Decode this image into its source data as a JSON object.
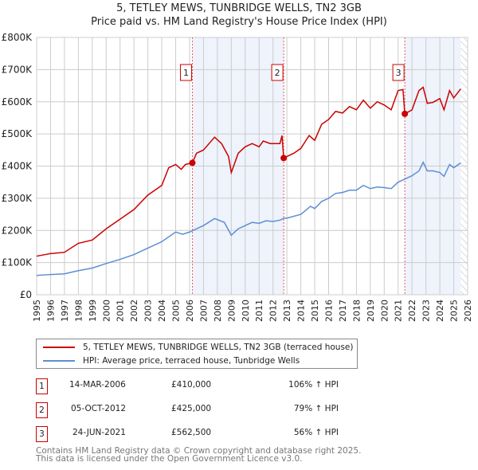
{
  "chart_data": {
    "type": "line",
    "title": "5, TETLEY MEWS, TUNBRIDGE WELLS, TN2 3GB",
    "subtitle": "Price paid vs. HM Land Registry's House Price Index (HPI)",
    "xlim": [
      1995,
      2026
    ],
    "ylim": [
      0,
      800000
    ],
    "x_ticks": [
      "1995",
      "1996",
      "1997",
      "1998",
      "1999",
      "2000",
      "2001",
      "2002",
      "2003",
      "2004",
      "2005",
      "2006",
      "2007",
      "2008",
      "2009",
      "2010",
      "2011",
      "2012",
      "2013",
      "2014",
      "2015",
      "2016",
      "2017",
      "2018",
      "2019",
      "2020",
      "2021",
      "2022",
      "2023",
      "2024",
      "2025",
      "2026"
    ],
    "y_ticks": [
      {
        "v": 0,
        "label": "£0"
      },
      {
        "v": 100000,
        "label": "£100K"
      },
      {
        "v": 200000,
        "label": "£200K"
      },
      {
        "v": 300000,
        "label": "£300K"
      },
      {
        "v": 400000,
        "label": "£400K"
      },
      {
        "v": 500000,
        "label": "£500K"
      },
      {
        "v": 600000,
        "label": "£600K"
      },
      {
        "v": 700000,
        "label": "£700K"
      },
      {
        "v": 800000,
        "label": "£800K"
      }
    ],
    "grid": true,
    "series": [
      {
        "name": "5, TETLEY MEWS, TUNBRIDGE WELLS, TN2 3GB (terraced house)",
        "color": "#cc0000",
        "x": [
          1995,
          1996,
          1997,
          1998,
          1999,
          2000,
          2001,
          2002,
          2003,
          2004,
          2004.5,
          2005,
          2005.4,
          2005.7,
          2006.2,
          2006.5,
          2007,
          2007.8,
          2008.3,
          2008.8,
          2009.0,
          2009.5,
          2010,
          2010.5,
          2011,
          2011.3,
          2011.8,
          2012.5,
          2012.65,
          2012.77,
          2013,
          2013.5,
          2014,
          2014.6,
          2015,
          2015.5,
          2016,
          2016.5,
          2017,
          2017.5,
          2018,
          2018.5,
          2019,
          2019.5,
          2020,
          2020.5,
          2021,
          2021.35,
          2021.48,
          2022,
          2022.5,
          2022.8,
          2023.1,
          2023.5,
          2024,
          2024.3,
          2024.7,
          2025,
          2025.5
        ],
        "y": [
          120,
          128,
          132,
          160,
          170,
          205,
          235,
          265,
          310,
          340,
          395,
          405,
          390,
          405,
          410,
          440,
          450,
          490,
          470,
          430,
          380,
          440,
          460,
          470,
          460,
          478,
          470,
          470,
          495,
          425,
          430,
          440,
          455,
          495,
          480,
          530,
          545,
          570,
          565,
          585,
          575,
          605,
          580,
          600,
          590,
          575,
          635,
          638,
          562,
          575,
          635,
          645,
          595,
          598,
          610,
          575,
          635,
          612,
          640
        ]
      },
      {
        "name": "HPI: Average price, terraced house, Tunbridge Wells",
        "color": "#5b8fd4",
        "x": [
          1995,
          1996,
          1997,
          1998,
          1999,
          2000,
          2001,
          2002,
          2003,
          2004,
          2005,
          2005.5,
          2006,
          2006.5,
          2007,
          2007.8,
          2008.5,
          2009.0,
          2009.5,
          2010,
          2010.5,
          2011,
          2011.5,
          2012,
          2012.5,
          2012.8,
          2013,
          2014,
          2014.7,
          2015,
          2015.5,
          2016,
          2016.5,
          2017,
          2017.5,
          2018,
          2018.5,
          2019,
          2019.5,
          2020,
          2020.5,
          2021,
          2021.5,
          2022,
          2022.5,
          2022.8,
          2023.1,
          2023.5,
          2024,
          2024.3,
          2024.7,
          2025,
          2025.5
        ],
        "y": [
          60,
          63,
          65,
          75,
          83,
          97,
          110,
          125,
          145,
          165,
          195,
          188,
          195,
          205,
          215,
          237,
          225,
          185,
          205,
          215,
          225,
          222,
          230,
          228,
          232,
          238,
          238,
          250,
          275,
          268,
          290,
          300,
          315,
          318,
          325,
          325,
          340,
          330,
          335,
          333,
          330,
          350,
          360,
          370,
          385,
          412,
          385,
          385,
          380,
          368,
          405,
          395,
          410
        ]
      }
    ],
    "y_unit": "thousand GBP",
    "shaded_ranges": [
      [
        2006.2,
        2012.77
      ],
      [
        2021.48,
        2025.5
      ]
    ],
    "hatched_from": 2025.5,
    "sales": [
      {
        "id": "1",
        "x": 2006.2,
        "price": 410,
        "date": "14-MAR-2006",
        "price_label": "£410,000",
        "hpi": "106% ↑ HPI"
      },
      {
        "id": "2",
        "x": 2012.77,
        "price": 425,
        "date": "05-OCT-2012",
        "price_label": "£425,000",
        "hpi": "79% ↑ HPI"
      },
      {
        "id": "3",
        "x": 2021.48,
        "price": 562.5,
        "date": "24-JUN-2021",
        "price_label": "£562,500",
        "hpi": "56% ↑ HPI"
      }
    ]
  },
  "footer": {
    "line1": "Contains HM Land Registry data © Crown copyright and database right 2025.",
    "line2": "This data is licensed under the Open Government Licence v3.0."
  }
}
